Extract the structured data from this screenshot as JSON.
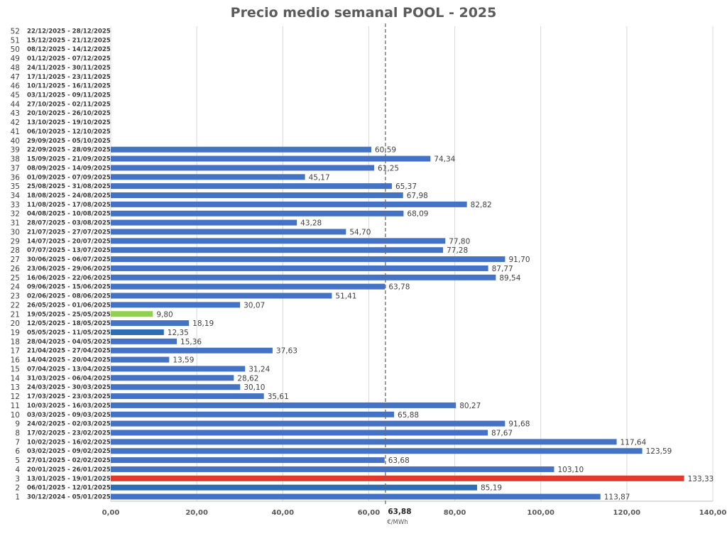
{
  "chart_data": {
    "type": "bar",
    "orientation": "horizontal",
    "title": "Precio medio semanal POOL - 2025",
    "xlabel": "€/MWh",
    "xlim": [
      0,
      140
    ],
    "x_ticks": [
      "0,00",
      "20,00",
      "40,00",
      "60,00",
      "80,00",
      "100,00",
      "120,00",
      "140,00"
    ],
    "grid": true,
    "average": {
      "value": 63.88,
      "label": "63,88"
    },
    "colors": {
      "default": "#4472c4",
      "max": "#e03a2f",
      "min": "#92d050",
      "highlight": "#2e6db4"
    },
    "weeks": [
      {
        "num": "1",
        "range": "30/12/2024 - 05/01/2025",
        "value": 113.87,
        "label": "113,87",
        "color": "default"
      },
      {
        "num": "2",
        "range": "06/01/2025 - 12/01/2025",
        "value": 85.19,
        "label": "85,19",
        "color": "highlight"
      },
      {
        "num": "3",
        "range": "13/01/2025 - 19/01/2025",
        "value": 133.33,
        "label": "133,33",
        "color": "max"
      },
      {
        "num": "4",
        "range": "20/01/2025 - 26/01/2025",
        "value": 103.1,
        "label": "103,10",
        "color": "default"
      },
      {
        "num": "5",
        "range": "27/01/2025 - 02/02/2025",
        "value": 63.68,
        "label": "63,68",
        "color": "default"
      },
      {
        "num": "6",
        "range": "03/02/2025 - 09/02/2025",
        "value": 123.59,
        "label": "123,59",
        "color": "default"
      },
      {
        "num": "7",
        "range": "10/02/2025 - 16/02/2025",
        "value": 117.64,
        "label": "117,64",
        "color": "default"
      },
      {
        "num": "8",
        "range": "17/02/2025 - 23/02/2025",
        "value": 87.67,
        "label": "87,67",
        "color": "default"
      },
      {
        "num": "9",
        "range": "24/02/2025 - 02/03/2025",
        "value": 91.68,
        "label": "91,68",
        "color": "default"
      },
      {
        "num": "10",
        "range": "03/03/2025 - 09/03/2025",
        "value": 65.88,
        "label": "65,88",
        "color": "default"
      },
      {
        "num": "11",
        "range": "10/03/2025 - 16/03/2025",
        "value": 80.27,
        "label": "80,27",
        "color": "default"
      },
      {
        "num": "12",
        "range": "17/03/2025 - 23/03/2025",
        "value": 35.61,
        "label": "35,61",
        "color": "default"
      },
      {
        "num": "13",
        "range": "24/03/2025 - 30/03/2025",
        "value": 30.1,
        "label": "30,10",
        "color": "default"
      },
      {
        "num": "14",
        "range": "31/03/2025 - 06/04/2025",
        "value": 28.62,
        "label": "28,62",
        "color": "default"
      },
      {
        "num": "15",
        "range": "07/04/2025 - 13/04/2025",
        "value": 31.24,
        "label": "31,24",
        "color": "default"
      },
      {
        "num": "16",
        "range": "14/04/2025 - 20/04/2025",
        "value": 13.59,
        "label": "13,59",
        "color": "default"
      },
      {
        "num": "17",
        "range": "21/04/2025 - 27/04/2025",
        "value": 37.63,
        "label": "37,63",
        "color": "default"
      },
      {
        "num": "18",
        "range": "28/04/2025 - 04/05/2025",
        "value": 15.36,
        "label": "15,36",
        "color": "default"
      },
      {
        "num": "19",
        "range": "05/05/2025 - 11/05/2025",
        "value": 12.35,
        "label": "12,35",
        "color": "highlight"
      },
      {
        "num": "20",
        "range": "12/05/2025 - 18/05/2025",
        "value": 18.19,
        "label": "18,19",
        "color": "default"
      },
      {
        "num": "21",
        "range": "19/05/2025 - 25/05/2025",
        "value": 9.8,
        "label": "9,80",
        "color": "min"
      },
      {
        "num": "22",
        "range": "26/05/2025 - 01/06/2025",
        "value": 30.07,
        "label": "30,07",
        "color": "default"
      },
      {
        "num": "23",
        "range": "02/06/2025 - 08/06/2025",
        "value": 51.41,
        "label": "51,41",
        "color": "default"
      },
      {
        "num": "24",
        "range": "09/06/2025 - 15/06/2025",
        "value": 63.78,
        "label": "63,78",
        "color": "default"
      },
      {
        "num": "25",
        "range": "16/06/2025 - 22/06/2025",
        "value": 89.54,
        "label": "89,54",
        "color": "default"
      },
      {
        "num": "26",
        "range": "23/06/2025 - 29/06/2025",
        "value": 87.77,
        "label": "87,77",
        "color": "default"
      },
      {
        "num": "27",
        "range": "30/06/2025 - 06/07/2025",
        "value": 91.7,
        "label": "91,70",
        "color": "default"
      },
      {
        "num": "28",
        "range": "07/07/2025 - 13/07/2025",
        "value": 77.28,
        "label": "77,28",
        "color": "default"
      },
      {
        "num": "29",
        "range": "14/07/2025 - 20/07/2025",
        "value": 77.8,
        "label": "77,80",
        "color": "default"
      },
      {
        "num": "30",
        "range": "21/07/2025 - 27/07/2025",
        "value": 54.7,
        "label": "54,70",
        "color": "default"
      },
      {
        "num": "31",
        "range": "28/07/2025 - 03/08/2025",
        "value": 43.28,
        "label": "43,28",
        "color": "default"
      },
      {
        "num": "32",
        "range": "04/08/2025 - 10/08/2025",
        "value": 68.09,
        "label": "68,09",
        "color": "default"
      },
      {
        "num": "33",
        "range": "11/08/2025 - 17/08/2025",
        "value": 82.82,
        "label": "82,82",
        "color": "default"
      },
      {
        "num": "34",
        "range": "18/08/2025 - 24/08/2025",
        "value": 67.98,
        "label": "67,98",
        "color": "default"
      },
      {
        "num": "35",
        "range": "25/08/2025 - 31/08/2025",
        "value": 65.37,
        "label": "65,37",
        "color": "default"
      },
      {
        "num": "36",
        "range": "01/09/2025 - 07/09/2025",
        "value": 45.17,
        "label": "45,17",
        "color": "default"
      },
      {
        "num": "37",
        "range": "08/09/2025 - 14/09/2025",
        "value": 61.25,
        "label": "61,25",
        "color": "default"
      },
      {
        "num": "38",
        "range": "15/09/2025 - 21/09/2025",
        "value": 74.34,
        "label": "74,34",
        "color": "default"
      },
      {
        "num": "39",
        "range": "22/09/2025 - 28/09/2025",
        "value": 60.59,
        "label": "60,59",
        "color": "default"
      },
      {
        "num": "40",
        "range": "29/09/2025 - 05/10/2025",
        "value": null,
        "label": "",
        "color": "default"
      },
      {
        "num": "41",
        "range": "06/10/2025 - 12/10/2025",
        "value": null,
        "label": "",
        "color": "default"
      },
      {
        "num": "42",
        "range": "13/10/2025 - 19/10/2025",
        "value": null,
        "label": "",
        "color": "default"
      },
      {
        "num": "43",
        "range": "20/10/2025 - 26/10/2025",
        "value": null,
        "label": "",
        "color": "default"
      },
      {
        "num": "44",
        "range": "27/10/2025 - 02/11/2025",
        "value": null,
        "label": "",
        "color": "default"
      },
      {
        "num": "45",
        "range": "03/11/2025 - 09/11/2025",
        "value": null,
        "label": "",
        "color": "default"
      },
      {
        "num": "46",
        "range": "10/11/2025 - 16/11/2025",
        "value": null,
        "label": "",
        "color": "default"
      },
      {
        "num": "47",
        "range": "17/11/2025 - 23/11/2025",
        "value": null,
        "label": "",
        "color": "default"
      },
      {
        "num": "48",
        "range": "24/11/2025 - 30/11/2025",
        "value": null,
        "label": "",
        "color": "default"
      },
      {
        "num": "49",
        "range": "01/12/2025 - 07/12/2025",
        "value": null,
        "label": "",
        "color": "default"
      },
      {
        "num": "50",
        "range": "08/12/2025 - 14/12/2025",
        "value": null,
        "label": "",
        "color": "default"
      },
      {
        "num": "51",
        "range": "15/12/2025 - 21/12/2025",
        "value": null,
        "label": "",
        "color": "default"
      },
      {
        "num": "52",
        "range": "22/12/2025 - 28/12/2025",
        "value": null,
        "label": "",
        "color": "default"
      }
    ]
  }
}
